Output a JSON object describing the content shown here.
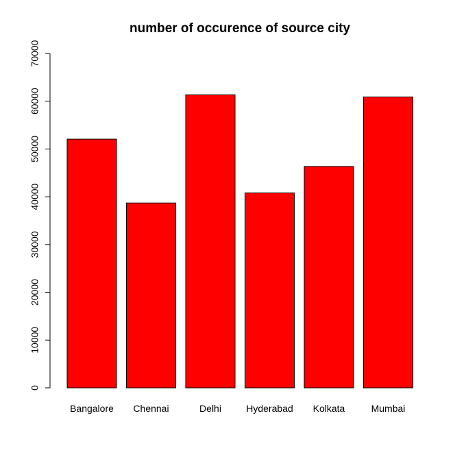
{
  "chart_data": {
    "type": "bar",
    "title": "number of occurence of source city",
    "xlabel": "",
    "ylabel": "",
    "categories": [
      "Bangalore",
      "Chennai",
      "Delhi",
      "Hyderabad",
      "Kolkata",
      "Mumbai"
    ],
    "values": [
      52061,
      38700,
      61343,
      40806,
      46347,
      60896
    ],
    "ylim": [
      0,
      70000
    ],
    "yticks": [
      "0",
      "10000",
      "20000",
      "30000",
      "40000",
      "50000",
      "60000",
      "70000"
    ],
    "grid": false,
    "legend": "none",
    "bar_color": "#ff0000"
  }
}
